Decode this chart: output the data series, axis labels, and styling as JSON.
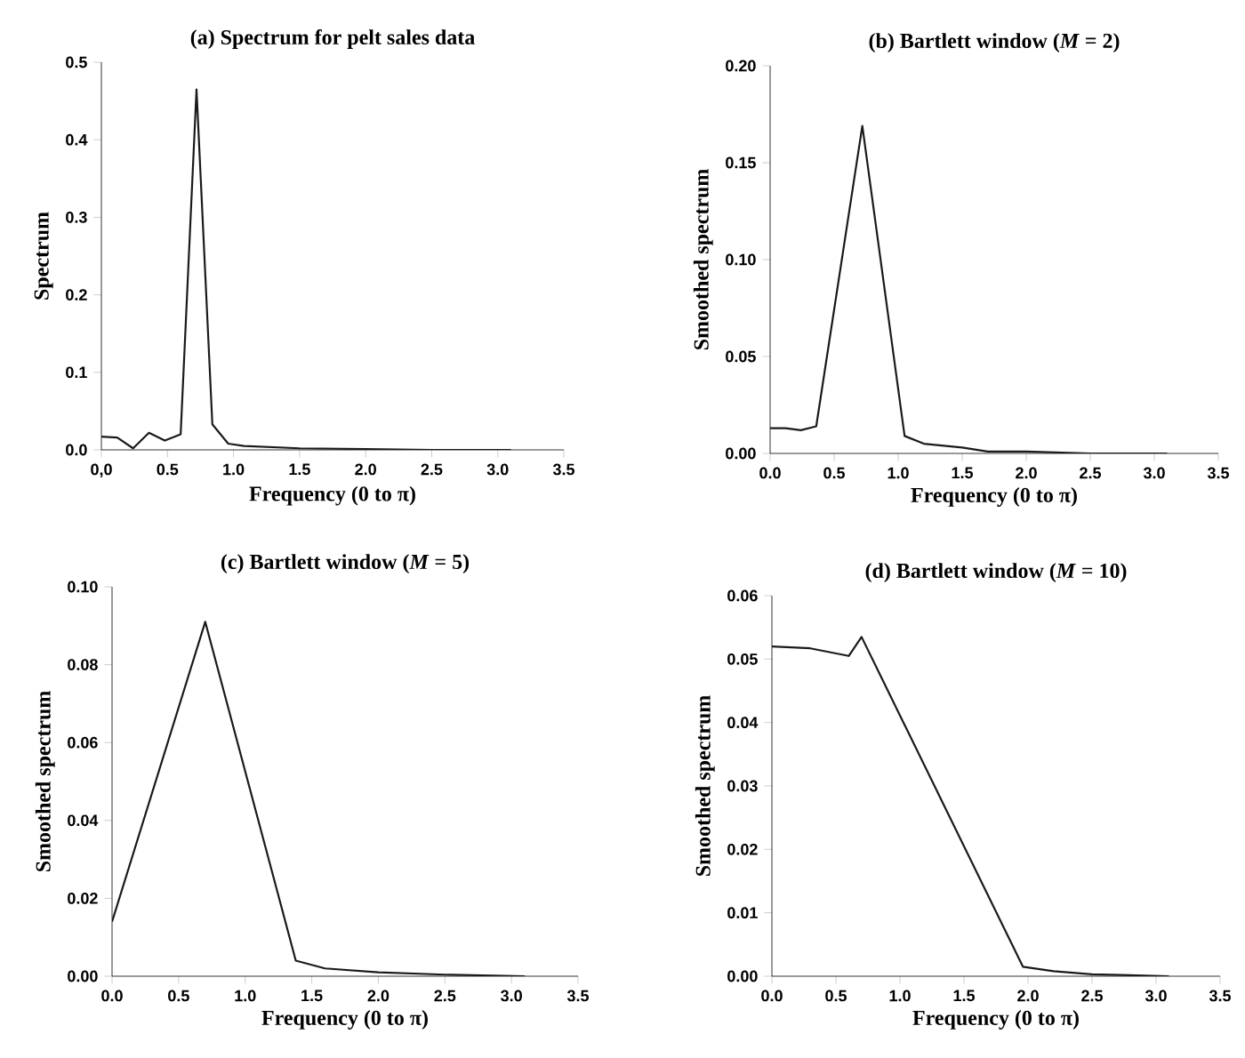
{
  "chart_data": [
    {
      "type": "line",
      "title": "(a) Spectrum for pelt sales data",
      "xlabel": "Frequency (0 to π)",
      "ylabel": "Spectrum",
      "xlim": [
        0,
        3.5
      ],
      "ylim": [
        0,
        0.5
      ],
      "xticks": [
        {
          "value": 0,
          "label": "0,0"
        },
        0.5,
        {
          "value": 1,
          "label": "1.0"
        },
        1.5,
        {
          "value": 2,
          "label": "2.0"
        },
        2.5,
        {
          "value": 3,
          "label": "3.0"
        },
        3.5
      ],
      "yticks": [
        {
          "value": 0,
          "label": "0.0"
        },
        0.1,
        0.2,
        0.3,
        0.4,
        0.5
      ],
      "x": [
        0,
        0.12,
        0.24,
        0.36,
        0.48,
        0.6,
        0.72,
        0.84,
        0.96,
        1.08,
        1.5,
        2.0,
        2.5,
        3.1
      ],
      "series": [
        {
          "color": "#1a1a1a",
          "values": [
            0.017,
            0.016,
            0.002,
            0.022,
            0.012,
            0.02,
            0.465,
            0.033,
            0.008,
            0.005,
            0.002,
            0.001,
            0.0,
            0.0
          ]
        }
      ]
    },
    {
      "type": "line",
      "title": "(b) Bartlett window (*M* = 2)",
      "xlabel": "Frequency (0 to π)",
      "ylabel": "Smoothed spectrum",
      "xlim": [
        0,
        3.5
      ],
      "ylim": [
        0,
        0.2
      ],
      "xticks": [
        {
          "value": 0,
          "label": "0.0"
        },
        0.5,
        {
          "value": 1,
          "label": "1.0"
        },
        1.5,
        {
          "value": 2,
          "label": "2.0"
        },
        2.5,
        {
          "value": 3,
          "label": "3.0"
        },
        3.5
      ],
      "yticks": [
        {
          "value": 0,
          "label": "0.00"
        },
        0.05,
        {
          "value": 0.1,
          "label": "0.10"
        },
        0.15,
        {
          "value": 0.2,
          "label": "0.20"
        }
      ],
      "x": [
        0,
        0.12,
        0.24,
        0.36,
        0.72,
        1.05,
        1.2,
        1.5,
        1.7,
        2.0,
        2.5,
        3.1
      ],
      "series": [
        {
          "color": "#1a1a1a",
          "values": [
            0.013,
            0.013,
            0.012,
            0.014,
            0.169,
            0.009,
            0.005,
            0.003,
            0.001,
            0.001,
            0.0,
            0.0
          ]
        }
      ]
    },
    {
      "type": "line",
      "title": "(c) Bartlett window (*M* = 5)",
      "xlabel": "Frequency (0 to π)",
      "ylabel": "Smoothed spectrum",
      "xlim": [
        0,
        3.5
      ],
      "ylim": [
        0,
        0.1
      ],
      "xticks": [
        {
          "value": 0,
          "label": "0.0"
        },
        0.5,
        {
          "value": 1,
          "label": "1.0"
        },
        1.5,
        {
          "value": 2,
          "label": "2.0"
        },
        2.5,
        {
          "value": 3,
          "label": "3.0"
        },
        3.5
      ],
      "yticks": [
        {
          "value": 0,
          "label": "0.00"
        },
        0.02,
        0.04,
        0.06,
        0.08,
        {
          "value": 0.1,
          "label": "0.10"
        }
      ],
      "x": [
        0,
        0.7,
        1.38,
        1.6,
        2.0,
        2.5,
        3.1
      ],
      "series": [
        {
          "color": "#1a1a1a",
          "values": [
            0.014,
            0.091,
            0.004,
            0.002,
            0.001,
            0.0004,
            0.0
          ]
        }
      ]
    },
    {
      "type": "line",
      "title": "(d) Bartlett window (*M* = 10)",
      "xlabel": "Frequency (0 to π)",
      "ylabel": "Smoothed spectrum",
      "xlim": [
        0,
        3.5
      ],
      "ylim": [
        0,
        0.06
      ],
      "xticks": [
        {
          "value": 0,
          "label": "0.0"
        },
        0.5,
        {
          "value": 1,
          "label": "1.0"
        },
        1.5,
        {
          "value": 2,
          "label": "2.0"
        },
        2.5,
        {
          "value": 3,
          "label": "3.0"
        },
        3.5
      ],
      "yticks": [
        {
          "value": 0,
          "label": "0.00"
        },
        0.01,
        0.02,
        0.03,
        0.04,
        0.05,
        0.06
      ],
      "x": [
        0,
        0.3,
        0.6,
        0.7,
        1.96,
        2.2,
        2.5,
        3.1
      ],
      "series": [
        {
          "color": "#1a1a1a",
          "values": [
            0.052,
            0.0517,
            0.0505,
            0.0535,
            0.0015,
            0.0008,
            0.0003,
            0.0
          ]
        }
      ]
    }
  ]
}
